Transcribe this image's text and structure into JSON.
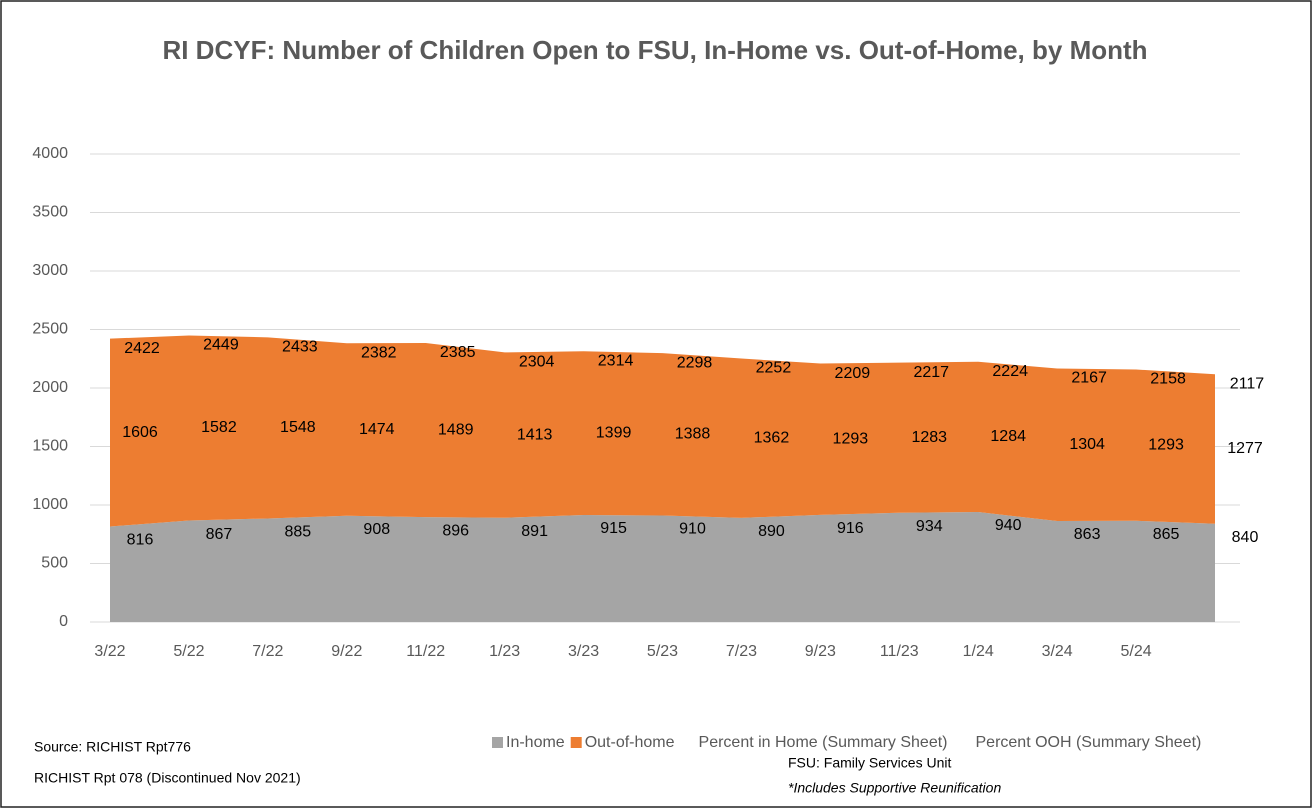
{
  "chart_data": {
    "type": "stacked_area",
    "title": "RI DCYF: Number of Children Open to FSU, In-Home vs. Out-of-Home, by Month",
    "categories": [
      "3/22",
      "5/22",
      "7/22",
      "9/22",
      "11/22",
      "1/23",
      "3/23",
      "5/23",
      "7/23",
      "9/23",
      "11/23",
      "1/24",
      "3/24",
      "5/24",
      null
    ],
    "series": [
      {
        "name": "In-home",
        "color": "#a5a5a5",
        "values": [
          816,
          867,
          885,
          908,
          896,
          891,
          915,
          910,
          890,
          916,
          934,
          940,
          863,
          865,
          840
        ]
      },
      {
        "name": "Out-of-home",
        "color": "#ed7d31",
        "values": [
          1606,
          1582,
          1548,
          1474,
          1489,
          1413,
          1399,
          1388,
          1362,
          1293,
          1283,
          1284,
          1304,
          1293,
          1277
        ]
      }
    ],
    "total_labels": [
      2422,
      2449,
      2433,
      2382,
      2385,
      2304,
      2314,
      2298,
      2252,
      2209,
      2217,
      2224,
      2167,
      2158,
      2117
    ],
    "legend_extra": [
      "Percent in Home (Summary Sheet)",
      "Percent OOH (Summary Sheet)"
    ],
    "ylim": [
      0,
      4000
    ],
    "yticks": [
      0,
      500,
      1000,
      1500,
      2000,
      2500,
      3000,
      3500,
      4000
    ],
    "grid": true,
    "notes": [
      "Source: RICHIST Rpt776",
      "RICHIST Rpt 078 (Discontinued Nov 2021)",
      "FSU: Family Services Unit",
      "*Includes Supportive Reunification"
    ]
  }
}
